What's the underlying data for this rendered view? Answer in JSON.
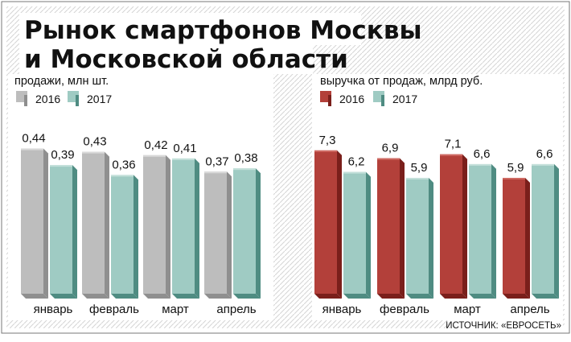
{
  "title_lines": [
    "Рынок смартфонов Москвы",
    "и Московской области"
  ],
  "source": "ИСТОЧНИК: «ЕВРОСЕТЬ»",
  "colors": {
    "s2016_gray": "#bdbdbd",
    "s2017_teal": "#9fcbc3",
    "s2016_red": "#b3403a",
    "s2017_teal_right": "#9fcbc3",
    "hatch": "#d8d8d8",
    "frame": "#555555"
  },
  "chart_data": [
    {
      "type": "bar",
      "title": "продажи, млн шт.",
      "categories": [
        "январь",
        "февраль",
        "март",
        "апрель"
      ],
      "ylim": [
        0,
        0.5
      ],
      "series": [
        {
          "name": "2016",
          "values": [
            0.44,
            0.43,
            0.42,
            0.37
          ],
          "labels": [
            "0,44",
            "0,43",
            "0,42",
            "0,37"
          ]
        },
        {
          "name": "2017",
          "values": [
            0.39,
            0.36,
            0.41,
            0.38
          ],
          "labels": [
            "0,39",
            "0,36",
            "0,41",
            "0,38"
          ]
        }
      ],
      "legend": "top-left",
      "grid": false
    },
    {
      "type": "bar",
      "title": "выручка от продаж, млрд руб.",
      "categories": [
        "январь",
        "февраль",
        "март",
        "апрель"
      ],
      "ylim": [
        0,
        8.4
      ],
      "series": [
        {
          "name": "2016",
          "values": [
            7.3,
            6.9,
            7.1,
            5.9
          ],
          "labels": [
            "7,3",
            "6,9",
            "7,1",
            "5,9"
          ]
        },
        {
          "name": "2017",
          "values": [
            6.2,
            5.9,
            6.6,
            6.6
          ],
          "labels": [
            "6,2",
            "5,9",
            "6,6",
            "6,6"
          ]
        }
      ],
      "legend": "top-left",
      "grid": false
    }
  ]
}
